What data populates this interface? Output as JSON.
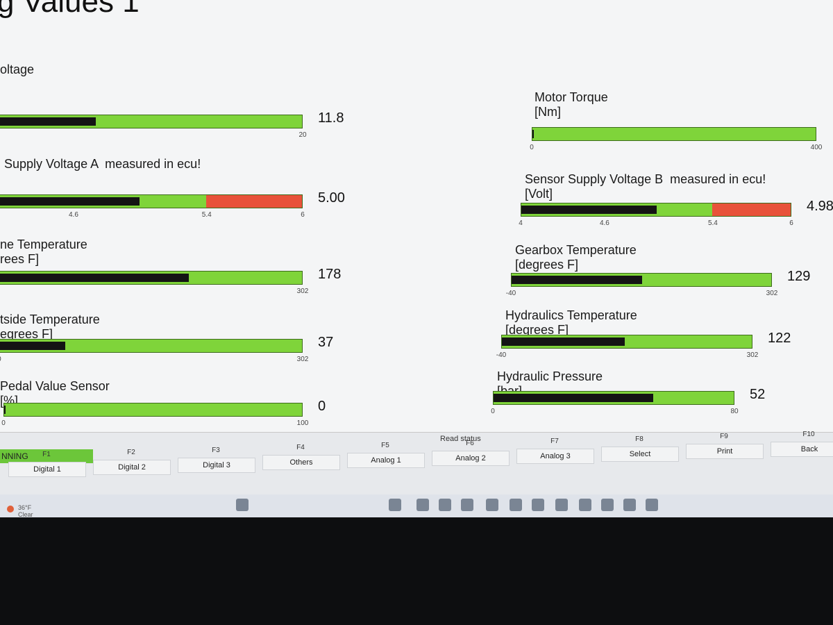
{
  "header": {
    "title": "g Values 1"
  },
  "gauges": [
    {
      "label": "oltage",
      "ticks": [
        "20"
      ],
      "value": "11.8"
    },
    {
      "label": "Supply Voltage A  measured in ecu!",
      "ticks": [
        "4.6",
        "5.4",
        "6"
      ],
      "value": "5.00"
    },
    {
      "label": "ne Temperature",
      "unit": "rees F]",
      "ticks": [
        "302"
      ],
      "value": "178"
    },
    {
      "label": "tside Temperature",
      "unit": "egrees F]",
      "ticks": [
        "0",
        "302"
      ],
      "value": "37"
    },
    {
      "label": "Pedal Value Sensor",
      "unit": "[%]",
      "ticks": [
        "0",
        "100"
      ],
      "value": "0"
    },
    {
      "label": "Motor Torque",
      "unit": "[Nm]",
      "ticks": [
        "0",
        "400"
      ]
    },
    {
      "label": "Sensor Supply Voltage B  measured in ecu!",
      "unit": "[Volt]",
      "ticks": [
        "4",
        "4.6",
        "5.4",
        "6"
      ],
      "value": "4.98"
    },
    {
      "label": "Gearbox Temperature",
      "unit": "[degrees F]",
      "ticks": [
        "-40",
        "302"
      ],
      "value": "129"
    },
    {
      "label": "Hydraulics Temperature",
      "unit": "[degrees F]",
      "ticks": [
        "-40",
        "302"
      ],
      "value": "122"
    },
    {
      "label": "Hydraulic Pressure",
      "unit": "[bar]",
      "ticks": [
        "0",
        "80"
      ],
      "value": "52"
    }
  ],
  "function_bar": {
    "status": "NNING",
    "read_status": "Read status",
    "keys": [
      {
        "key": "F1",
        "label": "Digital 1"
      },
      {
        "key": "F2",
        "label": "Digital 2"
      },
      {
        "key": "F3",
        "label": "Digital 3"
      },
      {
        "key": "F4",
        "label": "Others"
      },
      {
        "key": "F5",
        "label": "Analog 1"
      },
      {
        "key": "F6",
        "label": "Analog 2"
      },
      {
        "key": "F7",
        "label": "Analog 3"
      },
      {
        "key": "F8",
        "label": "Select"
      },
      {
        "key": "F9",
        "label": "Print"
      },
      {
        "key": "F10",
        "label": "Back"
      }
    ]
  },
  "taskbar": {
    "temperature": "36°F",
    "condition": "Clear"
  }
}
